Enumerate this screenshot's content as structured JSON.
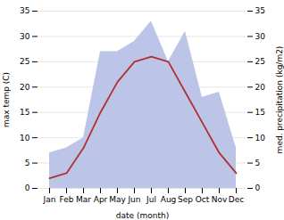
{
  "chart_data": {
    "type": "line",
    "xlabel": "date (month)",
    "ylabel": "max temp (C)",
    "y2label": "med. precipitation (kg/m2)",
    "categories": [
      "Jan",
      "Feb",
      "Mar",
      "Apr",
      "May",
      "Jun",
      "Jul",
      "Aug",
      "Sep",
      "Oct",
      "Nov",
      "Dec"
    ],
    "series": [
      {
        "type": "area",
        "axis": "y2",
        "color": "#bcc5e8",
        "values": [
          7,
          8,
          10,
          27,
          27,
          29,
          33,
          25,
          31,
          18,
          19,
          8
        ]
      },
      {
        "type": "line",
        "color": "#b03030",
        "values": [
          2,
          3,
          8,
          15,
          21,
          25,
          26,
          25,
          19,
          13,
          7,
          3
        ]
      }
    ],
    "ylim": [
      0,
      35
    ],
    "yticks": [
      0,
      5,
      10,
      15,
      20,
      25,
      30,
      35
    ],
    "y2lim": [
      0,
      35
    ],
    "y2ticks": [
      0,
      5,
      10,
      15,
      20,
      25,
      30,
      35
    ],
    "grid": true
  }
}
